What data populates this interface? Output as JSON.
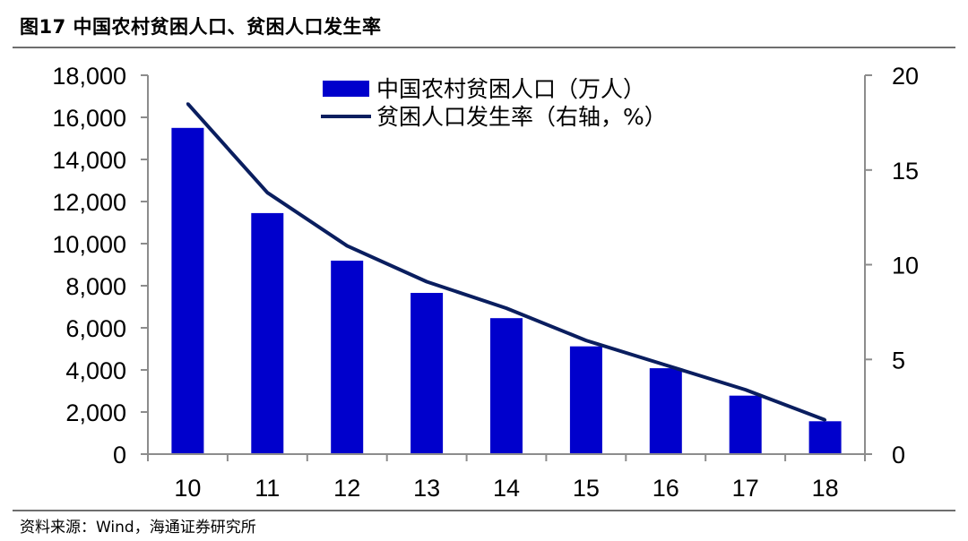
{
  "figure": {
    "title": "图17 中国农村贫困人口、贫困人口发生率",
    "source": "资料来源：Wind，海通证券研究所"
  },
  "chart_data": {
    "type": "bar",
    "categories": [
      "10",
      "11",
      "12",
      "13",
      "14",
      "15",
      "16",
      "17",
      "18"
    ],
    "series": [
      {
        "name": "中国农村贫困人口（万人）",
        "type": "bar",
        "axis": "left",
        "color": "#0000cc",
        "values": [
          15500,
          11450,
          9190,
          7660,
          6460,
          5120,
          4080,
          2780,
          1560
        ]
      },
      {
        "name": "贫困人口发生率（右轴，%）",
        "type": "line",
        "axis": "right",
        "color": "#0a1e5f",
        "values": [
          18.5,
          13.8,
          11.0,
          9.1,
          7.7,
          6.0,
          4.7,
          3.4,
          1.8
        ]
      }
    ],
    "y_left": {
      "ylim": [
        0,
        18000
      ],
      "ticks": [
        0,
        2000,
        4000,
        6000,
        8000,
        10000,
        12000,
        14000,
        16000,
        18000
      ],
      "tick_labels": [
        "0",
        "2,000",
        "4,000",
        "6,000",
        "8,000",
        "10,000",
        "12,000",
        "14,000",
        "16,000",
        "18,000"
      ]
    },
    "y_right": {
      "ylim": [
        0,
        20
      ],
      "ticks": [
        0,
        5,
        10,
        15,
        20
      ],
      "tick_labels": [
        "0",
        "5",
        "10",
        "15",
        "20"
      ]
    },
    "grid": false,
    "legend_position": "top-center"
  }
}
